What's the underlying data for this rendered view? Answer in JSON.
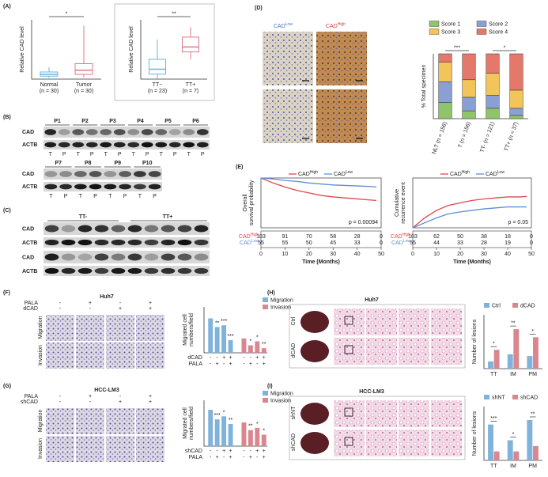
{
  "panel_labels": [
    "(A)",
    "(B)",
    "(C)",
    "(D)",
    "(E)",
    "(F)",
    "(G)",
    "(H)",
    "(I)"
  ],
  "chart_data": [
    {
      "type": "box",
      "ylabel": "Relative CAD level",
      "categories": [
        "Normal",
        "Tumor"
      ],
      "category_notes": [
        "(n = 30)",
        "(n = 30)"
      ],
      "colors": [
        "#6fb4d8",
        "#e07a8a"
      ],
      "boxes": [
        {
          "whislo": 0.2,
          "q1": 0.5,
          "med": 0.8,
          "q3": 1.2,
          "whishi": 2.0
        },
        {
          "whislo": 0.3,
          "q1": 0.8,
          "med": 1.5,
          "q3": 2.6,
          "whishi": 9.0
        }
      ],
      "ylim": [
        0,
        10
      ],
      "significance": "*"
    },
    {
      "type": "box",
      "ylabel": "Relative CAD level",
      "categories": [
        "TT−",
        "TT+"
      ],
      "category_notes": [
        "(n = 23)",
        "(n = 7)"
      ],
      "colors": [
        "#6fb4d8",
        "#e07a8a"
      ],
      "boxes": [
        {
          "whislo": 0,
          "q1": 1,
          "med": 2,
          "q3": 4,
          "whishi": 8
        },
        {
          "whislo": 4,
          "q1": 5.5,
          "med": 6.5,
          "q3": 8.5,
          "whishi": 10.5
        }
      ],
      "ylim": [
        0,
        12
      ],
      "significance": "**"
    },
    {
      "type": "stacked_bar",
      "ylabel": "% Total specimen",
      "categories": [
        "NLT (n = 156)",
        "T (n = 156)",
        "TT- (n = 121)",
        "TT+ (n = 37)"
      ],
      "ylim": [
        0,
        100
      ],
      "significance": [
        "***",
        "*"
      ],
      "series": [
        {
          "name": "Score 1",
          "color": "#8fc46a",
          "values": [
            25,
            12,
            16,
            5
          ]
        },
        {
          "name": "Score 2",
          "color": "#8a9fd4",
          "values": [
            32,
            21,
            20,
            11
          ]
        },
        {
          "name": "Score 3",
          "color": "#f2c45a",
          "values": [
            30,
            27,
            34,
            28
          ]
        },
        {
          "name": "Score 4",
          "color": "#e4786a",
          "values": [
            13,
            40,
            30,
            56
          ]
        }
      ]
    },
    {
      "type": "line",
      "ylabel": [
        "Overall",
        "survival probability"
      ],
      "xlabel": "Time (Months)",
      "p_value": "p = 0.00094",
      "x": [
        0,
        5,
        10,
        15,
        20,
        25,
        30,
        35,
        40,
        45,
        48
      ],
      "xlim": [
        0,
        50
      ],
      "xticks": [
        0,
        10,
        20,
        30,
        40,
        50
      ],
      "ylim": [
        0,
        1
      ],
      "series": [
        {
          "name": "CAD",
          "name_sup": "High",
          "color": "#e0474c",
          "values": [
            1,
            0.9,
            0.82,
            0.75,
            0.7,
            0.65,
            0.62,
            0.6,
            0.58,
            0.56,
            0.55
          ],
          "at_risk": [
            103,
            91,
            70,
            58,
            28,
            0
          ]
        },
        {
          "name": "CAD",
          "name_sup": "Low",
          "color": "#5b8fd6",
          "values": [
            1,
            0.98,
            0.95,
            0.93,
            0.9,
            0.88,
            0.86,
            0.85,
            0.84,
            0.83,
            0.82
          ],
          "at_risk": [
            55,
            55,
            50,
            45,
            33,
            0
          ]
        }
      ]
    },
    {
      "type": "line",
      "ylabel": [
        "Cumulative",
        "recurrence event"
      ],
      "xlabel": "Time (Months)",
      "p_value": "p = 0.05",
      "x": [
        0,
        5,
        10,
        15,
        20,
        25,
        30,
        35,
        40,
        45,
        48
      ],
      "xlim": [
        0,
        50
      ],
      "xticks": [
        0,
        10,
        20,
        30,
        40,
        50
      ],
      "ylim": [
        0,
        1
      ],
      "series": [
        {
          "name": "CAD",
          "name_sup": "High",
          "color": "#e0474c",
          "values": [
            0,
            0.2,
            0.35,
            0.45,
            0.5,
            0.55,
            0.58,
            0.6,
            0.62,
            0.62,
            0.63
          ],
          "at_risk": [
            103,
            62,
            50,
            38,
            18,
            0
          ]
        },
        {
          "name": "CAD",
          "name_sup": "Low",
          "color": "#5b8fd6",
          "values": [
            0,
            0.1,
            0.2,
            0.28,
            0.32,
            0.35,
            0.38,
            0.4,
            0.42,
            0.42,
            0.42
          ],
          "at_risk": [
            55,
            44,
            33,
            28,
            19,
            0
          ]
        }
      ]
    },
    {
      "type": "bar",
      "ylabel": [
        "Migrated cell",
        "numbers/field"
      ],
      "ylim": [
        0,
        80
      ],
      "conditions": [
        {
          "name": "dCAD",
          "signs": [
            "-",
            "-",
            "+",
            "+"
          ]
        },
        {
          "name": "PALA",
          "signs": [
            "-",
            "+",
            "-",
            "+"
          ]
        }
      ],
      "series": [
        {
          "name": "Migration",
          "color": "#7fb3dc",
          "values": [
            60,
            45,
            48,
            22
          ],
          "significance": [
            "**",
            "***",
            "***"
          ]
        },
        {
          "name": "Invasion",
          "color": "#d9868f",
          "values": [
            25,
            13,
            20,
            8
          ],
          "significance": [
            "*",
            "*",
            "**"
          ]
        }
      ]
    },
    {
      "type": "bar",
      "ylabel": [
        "Migrated cell",
        "numbers/field"
      ],
      "ylim": [
        0,
        120
      ],
      "conditions": [
        {
          "name": "shCAD",
          "signs": [
            "-",
            "-",
            "+",
            "+"
          ]
        },
        {
          "name": "PALA",
          "signs": [
            "-",
            "+",
            "-",
            "+"
          ]
        }
      ],
      "series": [
        {
          "name": "Migration",
          "color": "#7fb3dc",
          "values": [
            95,
            70,
            78,
            58
          ],
          "significance": [
            "***",
            "*",
            "**"
          ]
        },
        {
          "name": "Invasion",
          "color": "#d9868f",
          "values": [
            62,
            42,
            48,
            30
          ],
          "significance": [
            "**",
            "*",
            "*"
          ]
        }
      ]
    },
    {
      "type": "bar",
      "ylabel": "Number of lesions",
      "categories": [
        "TT",
        "IM",
        "PM"
      ],
      "ylim": [
        0,
        6
      ],
      "significance": [
        "*",
        "**",
        "*"
      ],
      "series": [
        {
          "name": "Ctrl",
          "color": "#7fb3dc",
          "values": [
            0.8,
            1.6,
            1.4
          ]
        },
        {
          "name": "dCAD",
          "color": "#d9868f",
          "values": [
            2.1,
            4.4,
            3.5
          ]
        }
      ]
    },
    {
      "type": "bar",
      "ylabel": "Number of lesions",
      "categories": [
        "TT",
        "IM",
        "PM"
      ],
      "ylim": [
        0,
        12
      ],
      "significance": [
        "***",
        "*",
        "**"
      ],
      "series": [
        {
          "name": "shNT",
          "color": "#7fb3dc",
          "values": [
            8,
            4.5,
            9
          ]
        },
        {
          "name": "shCAD",
          "color": "#d9868f",
          "values": [
            2,
            2,
            3.2
          ]
        }
      ]
    }
  ],
  "blots_B": [
    {
      "patients": [
        "P1",
        "P2",
        "P3",
        "P4",
        "P5",
        "P6"
      ],
      "lanes": [
        "T",
        "P",
        "T",
        "P",
        "T",
        "P",
        "T",
        "P",
        "T",
        "P",
        "T",
        "P"
      ],
      "proteins": [
        "CAD",
        "ACTB"
      ]
    },
    {
      "patients": [
        "P7",
        "P8",
        "P9",
        "P10"
      ],
      "lanes": [
        "T",
        "P",
        "T",
        "P",
        "T",
        "P",
        "T",
        "P"
      ],
      "proteins": [
        "CAD",
        "ACTB"
      ]
    }
  ],
  "blots_C": {
    "groups": [
      "TT-",
      "TT+"
    ],
    "proteins": [
      "CAD",
      "ACTB",
      "CAD",
      "ACTB"
    ]
  },
  "images_D": {
    "low": {
      "text": "CAD",
      "sup": "Low"
    },
    "high": {
      "text": "CAD",
      "sup": "High"
    }
  },
  "images_F": {
    "title": "Huh7",
    "treatments": [
      {
        "name": "PALA",
        "signs": [
          "-",
          "+",
          "-",
          "+"
        ]
      },
      {
        "name": "dCAD",
        "signs": [
          "-",
          "-",
          "+",
          "+"
        ]
      }
    ],
    "rows": [
      "Migration",
      "Invasion"
    ]
  },
  "images_G": {
    "title": "HCC-LM3",
    "treatments": [
      {
        "name": "PALA",
        "signs": [
          "-",
          "+",
          "-",
          "+"
        ]
      },
      {
        "name": "shCAD",
        "signs": [
          "-",
          "-",
          "+",
          "+"
        ]
      }
    ],
    "rows": [
      "Migration",
      "Invasion"
    ]
  },
  "images_H": {
    "title": "Huh7",
    "rows": [
      "Ctrl",
      "dCAD"
    ]
  },
  "images_I": {
    "title": "HCC-LM3",
    "rows": [
      "shNT",
      "shCAD"
    ]
  }
}
